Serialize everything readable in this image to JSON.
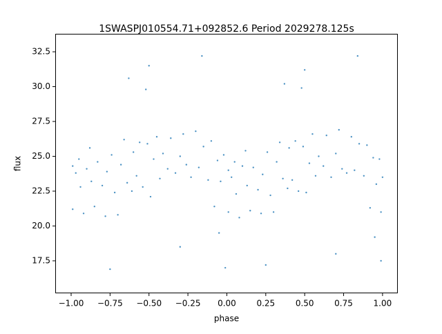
{
  "chart_data": {
    "type": "scatter",
    "title": "1SWASPJ010554.71+092852.6 Period 2029278.125s",
    "x_label": "phase",
    "y_label": "flux",
    "color": "#1f77b4",
    "xlim": [
      -1.102,
      1.098
    ],
    "ylim": [
      15.17,
      33.79
    ],
    "xticks": [
      {
        "value": -1,
        "label": "−1.00"
      },
      {
        "value": -0.75,
        "label": "−0.75"
      },
      {
        "value": -0.5,
        "label": "−0.50"
      },
      {
        "value": -0.25,
        "label": "−0.25"
      },
      {
        "value": 0,
        "label": "0.00"
      },
      {
        "value": 0.25,
        "label": "0.25"
      },
      {
        "value": 0.5,
        "label": "0.50"
      },
      {
        "value": 0.75,
        "label": "0.75"
      },
      {
        "value": 1,
        "label": "1.00"
      }
    ],
    "yticks": [
      17.5,
      {
        "value": 20,
        "label": "20.0"
      },
      22.5,
      {
        "value": 25,
        "label": "25.0"
      },
      27.5,
      {
        "value": 30,
        "label": "30.0"
      },
      32.5
    ],
    "x": [
      -0.99,
      -0.99,
      -0.97,
      -0.95,
      -0.94,
      -0.92,
      -0.9,
      -0.88,
      -0.87,
      -0.85,
      -0.83,
      -0.8,
      -0.78,
      -0.77,
      -0.74,
      -0.72,
      -0.7,
      -0.68,
      -0.66,
      -0.64,
      -0.63,
      -0.61,
      -0.6,
      -0.58,
      -0.56,
      -0.54,
      -0.52,
      -0.51,
      -0.49,
      -0.47,
      -0.45,
      -0.43,
      -0.41,
      -0.38,
      -0.36,
      -0.33,
      -0.3,
      -0.28,
      -0.26,
      -0.23,
      -0.2,
      -0.18,
      -0.15,
      -0.12,
      -0.1,
      -0.08,
      -0.06,
      -0.04,
      -0.02,
      -0.01,
      -0.05,
      -0.3,
      -0.75,
      -0.5,
      0.01,
      0.01,
      0.03,
      0.05,
      0.06,
      0.08,
      0.1,
      0.12,
      0.13,
      0.15,
      0.17,
      0.2,
      0.22,
      0.23,
      0.26,
      0.28,
      0.3,
      0.32,
      0.34,
      0.36,
      0.37,
      0.39,
      0.4,
      0.42,
      0.44,
      0.46,
      0.48,
      0.49,
      0.51,
      0.53,
      0.55,
      0.57,
      0.59,
      0.62,
      0.64,
      0.67,
      0.7,
      0.72,
      0.74,
      0.77,
      0.8,
      0.82,
      0.85,
      0.88,
      0.9,
      0.92,
      0.94,
      0.96,
      0.98,
      0.99,
      0.95,
      0.7,
      0.25,
      0.5,
      1.0,
      0.99,
      0.84,
      -0.16
    ],
    "values": [
      24.3,
      21.2,
      23.8,
      24.8,
      22.8,
      20.9,
      24.1,
      25.6,
      23.2,
      21.4,
      24.6,
      22.9,
      20.7,
      23.9,
      25.1,
      22.4,
      20.8,
      24.4,
      26.2,
      23.1,
      30.6,
      22.5,
      25.3,
      23.6,
      26.0,
      22.8,
      29.8,
      25.9,
      22.1,
      24.8,
      26.4,
      23.4,
      25.2,
      24.1,
      26.3,
      23.8,
      25.0,
      26.6,
      24.4,
      23.5,
      26.8,
      24.2,
      25.7,
      23.3,
      26.1,
      21.4,
      24.7,
      23.2,
      25.1,
      17.0,
      19.5,
      18.5,
      16.9,
      31.5,
      24.0,
      21.0,
      23.5,
      24.6,
      22.3,
      20.6,
      24.3,
      25.4,
      22.9,
      21.1,
      24.2,
      22.6,
      20.9,
      23.7,
      25.3,
      22.2,
      21.0,
      24.6,
      26.0,
      23.4,
      30.2,
      22.7,
      25.6,
      23.3,
      26.1,
      22.5,
      29.9,
      25.7,
      22.4,
      24.5,
      26.6,
      23.6,
      25.0,
      24.3,
      26.5,
      23.5,
      25.2,
      26.9,
      24.1,
      23.8,
      26.4,
      24.0,
      25.9,
      23.6,
      25.8,
      21.3,
      24.9,
      23.0,
      24.8,
      17.5,
      19.2,
      18.0,
      17.2,
      31.2,
      23.5,
      21.0,
      32.2,
      32.2
    ]
  }
}
